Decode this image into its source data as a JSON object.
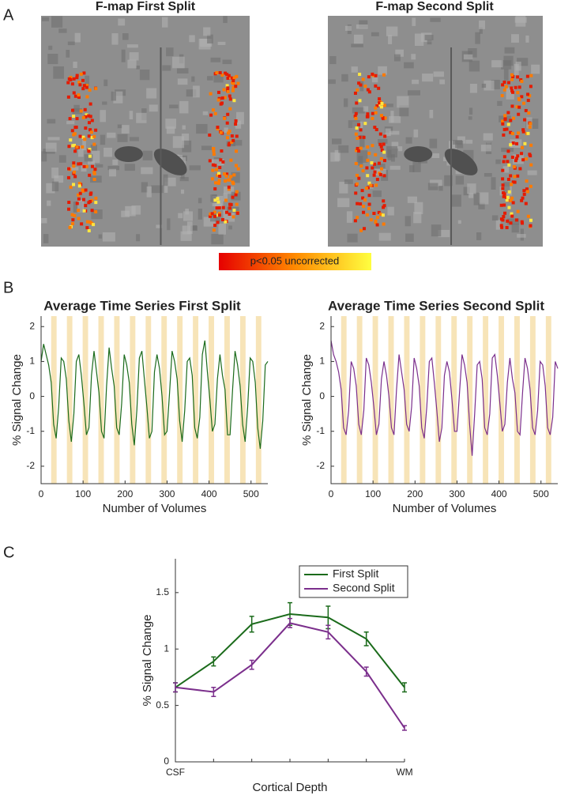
{
  "panel_labels": [
    "A",
    "B",
    "C"
  ],
  "fmap": {
    "titles": [
      "F-map First Split",
      "F-map Second Split"
    ],
    "colorbar_label": "p<0.05 uncorrected"
  },
  "chart_data": [
    {
      "type": "line",
      "title": "Average Time Series First Split",
      "xlabel": "Number of Volumes",
      "ylabel": "% Signal Change",
      "xlim": [
        0,
        540
      ],
      "ylim": [
        -2.5,
        2.3
      ],
      "xticks": [
        0,
        100,
        200,
        300,
        400,
        500
      ],
      "yticks": [
        -2,
        -1,
        0,
        1,
        2
      ],
      "blocks": [
        [
          24,
          37
        ],
        [
          61.5,
          74.5
        ],
        [
          99,
          112
        ],
        [
          136.5,
          149.5
        ],
        [
          174,
          187
        ],
        [
          211.5,
          224.5
        ],
        [
          249,
          262
        ],
        [
          286.5,
          299.5
        ],
        [
          324,
          337
        ],
        [
          361.5,
          374.5
        ],
        [
          399,
          412
        ],
        [
          436.5,
          449.5
        ],
        [
          474,
          487
        ],
        [
          511.5,
          524.5
        ]
      ],
      "block_color": "#f7e4b8",
      "x": [
        0,
        6,
        12,
        18,
        24,
        30,
        36,
        42,
        48,
        54,
        60,
        66,
        72,
        78,
        84,
        90,
        96,
        102,
        108,
        114,
        120,
        126,
        132,
        138,
        144,
        150,
        156,
        162,
        168,
        174,
        180,
        186,
        192,
        198,
        204,
        210,
        216,
        222,
        228,
        234,
        240,
        246,
        252,
        258,
        264,
        270,
        276,
        282,
        288,
        294,
        300,
        306,
        312,
        318,
        324,
        330,
        336,
        342,
        348,
        354,
        360,
        366,
        372,
        378,
        384,
        390,
        396,
        402,
        408,
        414,
        420,
        426,
        432,
        438,
        444,
        450,
        456,
        462,
        468,
        474,
        480,
        486,
        492,
        498,
        504,
        510,
        516,
        522,
        528,
        534,
        540
      ],
      "series": [
        {
          "name": "First Split",
          "color": "#1b6b1b",
          "values": [
            1.0,
            1.5,
            1.2,
            0.9,
            0.4,
            -0.8,
            -1.2,
            -0.3,
            1.1,
            1.0,
            0.5,
            -0.7,
            -1.3,
            -0.5,
            1.0,
            1.2,
            0.6,
            -0.2,
            -1.1,
            -0.9,
            0.6,
            1.3,
            0.7,
            0.1,
            -1.0,
            -1.2,
            0.3,
            1.4,
            0.8,
            0.3,
            -0.9,
            -1.1,
            -0.2,
            1.2,
            0.9,
            0.4,
            -0.8,
            -1.4,
            -0.4,
            1.1,
            1.3,
            0.5,
            -0.3,
            -1.2,
            -1.0,
            0.7,
            1.2,
            0.8,
            0.0,
            -1.1,
            -1.0,
            0.1,
            1.3,
            1.0,
            0.5,
            -0.7,
            -1.3,
            -0.4,
            1.0,
            1.1,
            0.6,
            -0.9,
            -1.2,
            -0.6,
            1.2,
            1.6,
            0.7,
            -0.1,
            -1.0,
            -0.8,
            0.5,
            1.2,
            0.6,
            0.2,
            -1.1,
            -1.1,
            0.2,
            1.3,
            0.9,
            0.3,
            -0.8,
            -1.3,
            -0.3,
            1.1,
            1.0,
            0.4,
            -0.9,
            -1.5,
            -0.7,
            0.9,
            1.0
          ]
        }
      ]
    },
    {
      "type": "line",
      "title": "Average Time Series Second Split",
      "xlabel": "Number of Volumes",
      "ylabel": "% Signal Change",
      "xlim": [
        0,
        540
      ],
      "ylim": [
        -2.5,
        2.3
      ],
      "xticks": [
        0,
        100,
        200,
        300,
        400,
        500
      ],
      "yticks": [
        -2,
        -1,
        0,
        1,
        2
      ],
      "blocks": [
        [
          24,
          37
        ],
        [
          61.5,
          74.5
        ],
        [
          99,
          112
        ],
        [
          136.5,
          149.5
        ],
        [
          174,
          187
        ],
        [
          211.5,
          224.5
        ],
        [
          249,
          262
        ],
        [
          286.5,
          299.5
        ],
        [
          324,
          337
        ],
        [
          361.5,
          374.5
        ],
        [
          399,
          412
        ],
        [
          436.5,
          449.5
        ],
        [
          474,
          487
        ],
        [
          511.5,
          524.5
        ]
      ],
      "block_color": "#f7e4b8",
      "x": [
        0,
        6,
        12,
        18,
        24,
        30,
        36,
        42,
        48,
        54,
        60,
        66,
        72,
        78,
        84,
        90,
        96,
        102,
        108,
        114,
        120,
        126,
        132,
        138,
        144,
        150,
        156,
        162,
        168,
        174,
        180,
        186,
        192,
        198,
        204,
        210,
        216,
        222,
        228,
        234,
        240,
        246,
        252,
        258,
        264,
        270,
        276,
        282,
        288,
        294,
        300,
        306,
        312,
        318,
        324,
        330,
        336,
        342,
        348,
        354,
        360,
        366,
        372,
        378,
        384,
        390,
        396,
        402,
        408,
        414,
        420,
        426,
        432,
        438,
        444,
        450,
        456,
        462,
        468,
        474,
        480,
        486,
        492,
        498,
        504,
        510,
        516,
        522,
        528,
        534,
        540
      ],
      "series": [
        {
          "name": "Second Split",
          "color": "#7b2f8c",
          "values": [
            1.6,
            1.2,
            1.0,
            0.7,
            0.2,
            -0.9,
            -1.1,
            -0.4,
            1.0,
            0.8,
            0.3,
            -0.8,
            -1.1,
            -0.4,
            1.1,
            0.9,
            0.4,
            -0.3,
            -1.1,
            -0.8,
            0.5,
            1.0,
            0.6,
            0.0,
            -0.9,
            -1.1,
            0.2,
            1.2,
            0.7,
            0.2,
            -0.8,
            -1.0,
            -0.3,
            1.1,
            0.8,
            0.3,
            -0.9,
            -1.2,
            -0.3,
            1.0,
            1.1,
            0.4,
            -0.4,
            -1.3,
            -0.9,
            0.6,
            1.0,
            0.7,
            -0.1,
            -1.0,
            -1.0,
            0.1,
            1.2,
            0.9,
            0.4,
            -0.8,
            -1.7,
            -0.5,
            0.9,
            1.0,
            0.5,
            -0.9,
            -1.1,
            -0.5,
            1.1,
            1.2,
            0.6,
            -0.2,
            -1.0,
            -0.8,
            0.4,
            1.1,
            0.5,
            0.1,
            -1.0,
            -1.1,
            0.1,
            1.1,
            0.8,
            0.2,
            -0.9,
            -1.1,
            -0.4,
            1.0,
            0.9,
            0.3,
            -0.9,
            -1.1,
            -0.6,
            1.0,
            0.8
          ]
        }
      ]
    },
    {
      "type": "errorbar",
      "xlabel": "Cortical Depth",
      "ylabel": "% Signal Change",
      "categories": [
        "CSF",
        null,
        null,
        null,
        null,
        null,
        "WM"
      ],
      "ylim": [
        0,
        1.8
      ],
      "yticks": [
        0,
        0.5,
        1,
        1.5
      ],
      "legend": "upper right",
      "series": [
        {
          "name": "First Split",
          "color": "#1b6b1b",
          "values": [
            0.66,
            0.89,
            1.22,
            1.31,
            1.28,
            1.09,
            0.66
          ],
          "errors": [
            0.04,
            0.04,
            0.07,
            0.1,
            0.1,
            0.06,
            0.04
          ]
        },
        {
          "name": "Second Split",
          "color": "#7b2f8c",
          "values": [
            0.66,
            0.62,
            0.86,
            1.23,
            1.15,
            0.8,
            0.3
          ],
          "errors": [
            0.04,
            0.04,
            0.04,
            0.04,
            0.06,
            0.04,
            0.02
          ]
        }
      ]
    }
  ]
}
